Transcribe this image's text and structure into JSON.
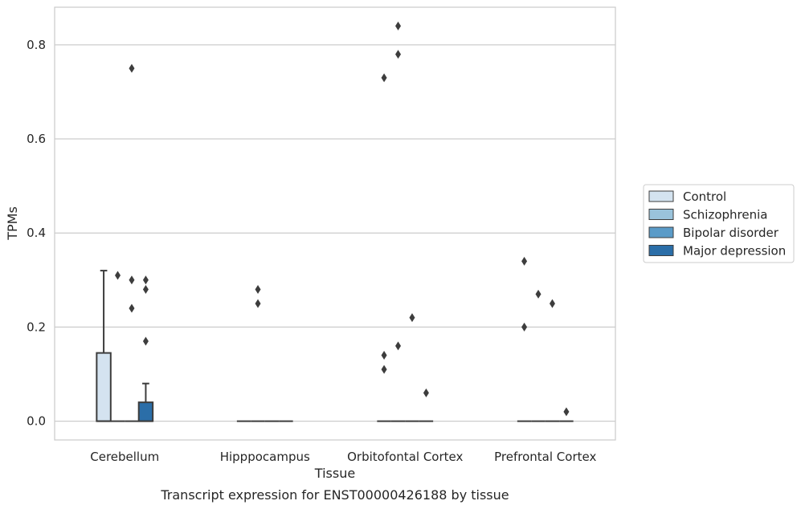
{
  "chart_data": {
    "type": "box",
    "xlabel": "Tissue",
    "ylabel": "TPMs",
    "caption": "Transcript expression for ENST00000426188 by tissue",
    "ylim": [
      -0.04,
      0.88
    ],
    "yticks": [
      0.0,
      0.2,
      0.4,
      0.6,
      0.8
    ],
    "ytick_labels": [
      "0.0",
      "0.2",
      "0.4",
      "0.6",
      "0.8"
    ],
    "grid": "horizontal",
    "legend_position": "right",
    "categories": [
      "Cerebellum",
      "Hipppocampus",
      "Orbitofontal Cortex",
      "Prefrontal Cortex"
    ],
    "series": [
      {
        "name": "Control",
        "color": "#d4e3f0",
        "boxes": [
          {
            "q1": 0.0,
            "median": 0.0,
            "q3": 0.145,
            "whisker_low": 0.0,
            "whisker_high": 0.32,
            "outliers": []
          },
          {
            "q1": 0.0,
            "median": 0.0,
            "q3": 0.0,
            "whisker_low": 0.0,
            "whisker_high": 0.0,
            "outliers": []
          },
          {
            "q1": 0.0,
            "median": 0.0,
            "q3": 0.0,
            "whisker_low": 0.0,
            "whisker_high": 0.0,
            "outliers": [
              0.11,
              0.14,
              0.73
            ]
          },
          {
            "q1": 0.0,
            "median": 0.0,
            "q3": 0.0,
            "whisker_low": 0.0,
            "whisker_high": 0.0,
            "outliers": [
              0.2,
              0.34
            ]
          }
        ]
      },
      {
        "name": "Schizophrenia",
        "color": "#9ac3db",
        "boxes": [
          {
            "q1": 0.0,
            "median": 0.0,
            "q3": 0.0,
            "whisker_low": 0.0,
            "whisker_high": 0.0,
            "outliers": [
              0.31
            ]
          },
          {
            "q1": 0.0,
            "median": 0.0,
            "q3": 0.0,
            "whisker_low": 0.0,
            "whisker_high": 0.0,
            "outliers": [
              0.25,
              0.28
            ]
          },
          {
            "q1": 0.0,
            "median": 0.0,
            "q3": 0.0,
            "whisker_low": 0.0,
            "whisker_high": 0.0,
            "outliers": [
              0.16,
              0.78,
              0.84
            ]
          },
          {
            "q1": 0.0,
            "median": 0.0,
            "q3": 0.0,
            "whisker_low": 0.0,
            "whisker_high": 0.0,
            "outliers": [
              0.27
            ]
          }
        ]
      },
      {
        "name": "Bipolar disorder",
        "color": "#5a9bc8",
        "boxes": [
          {
            "q1": 0.0,
            "median": 0.0,
            "q3": 0.0,
            "whisker_low": 0.0,
            "whisker_high": 0.0,
            "outliers": [
              0.24,
              0.3,
              0.75
            ]
          },
          {
            "q1": 0.0,
            "median": 0.0,
            "q3": 0.0,
            "whisker_low": 0.0,
            "whisker_high": 0.0,
            "outliers": []
          },
          {
            "q1": 0.0,
            "median": 0.0,
            "q3": 0.0,
            "whisker_low": 0.0,
            "whisker_high": 0.0,
            "outliers": [
              0.22
            ]
          },
          {
            "q1": 0.0,
            "median": 0.0,
            "q3": 0.0,
            "whisker_low": 0.0,
            "whisker_high": 0.0,
            "outliers": [
              0.25
            ]
          }
        ]
      },
      {
        "name": "Major depression",
        "color": "#2b6ea8",
        "boxes": [
          {
            "q1": 0.0,
            "median": 0.0,
            "q3": 0.04,
            "whisker_low": 0.0,
            "whisker_high": 0.08,
            "outliers": [
              0.17,
              0.28,
              0.3
            ]
          },
          {
            "q1": 0.0,
            "median": 0.0,
            "q3": 0.0,
            "whisker_low": 0.0,
            "whisker_high": 0.0,
            "outliers": []
          },
          {
            "q1": 0.0,
            "median": 0.0,
            "q3": 0.0,
            "whisker_low": 0.0,
            "whisker_high": 0.0,
            "outliers": [
              0.06
            ]
          },
          {
            "q1": 0.0,
            "median": 0.0,
            "q3": 0.0,
            "whisker_low": 0.0,
            "whisker_high": 0.0,
            "outliers": [
              0.02
            ]
          }
        ]
      }
    ],
    "colors": {
      "edge": "#3d3d3d",
      "grid": "#cccccc",
      "frame": "#cccccc"
    }
  }
}
